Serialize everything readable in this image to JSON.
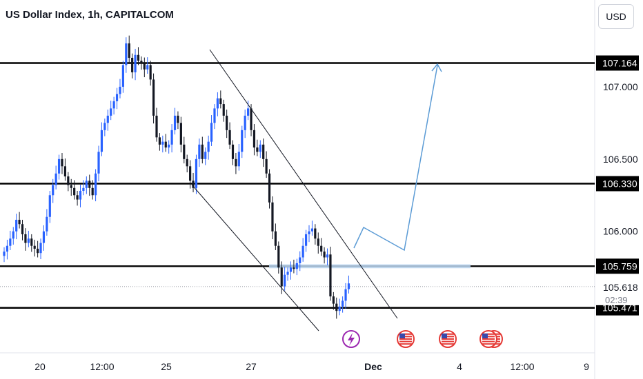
{
  "chart_title": "US Dollar Index, 1h, CAPITALCOM",
  "currency_button": "USD",
  "colors": {
    "up": "#2962ff",
    "down": "#131722",
    "level": "#000000",
    "drawing": "#5b9bd5",
    "zone": "#bbd6f0",
    "channel": "#131722",
    "axis_text": "#131722",
    "event_purple": "#9c27b0",
    "event_red": "#e53935"
  },
  "chart_data": {
    "type": "candlestick",
    "title": "US Dollar Index, 1h, CAPITALCOM",
    "ylim": [
      105.16,
      107.6
    ],
    "y_ticks": [
      107.0,
      106.5,
      106.0
    ],
    "y_tick_labels": [
      "107.000",
      "106.500",
      "106.000"
    ],
    "x_tick_labels": [
      "20",
      "12:00",
      "25",
      "27",
      "Dec",
      "4",
      "12:00",
      "9"
    ],
    "current_price": 105.618,
    "countdown": "02:39",
    "horizontal_levels": [
      {
        "value": 107.164,
        "label": "107.164"
      },
      {
        "value": 106.33,
        "label": "106.330"
      },
      {
        "value": 105.759,
        "label": "105.759"
      },
      {
        "value": 105.471,
        "label": "105.471"
      }
    ],
    "closes": [
      105.86,
      105.9,
      105.95,
      106.0,
      106.08,
      106.05,
      105.98,
      105.92,
      105.95,
      105.9,
      105.88,
      105.85,
      105.92,
      106.0,
      106.1,
      106.25,
      106.32,
      106.4,
      106.5,
      106.45,
      106.38,
      106.32,
      106.3,
      106.25,
      106.22,
      106.28,
      106.3,
      106.35,
      106.3,
      106.25,
      106.4,
      106.55,
      106.7,
      106.75,
      106.8,
      106.85,
      106.9,
      106.95,
      107.0,
      107.15,
      107.3,
      107.2,
      107.1,
      107.22,
      107.18,
      107.16,
      107.12,
      107.15,
      107.05,
      106.8,
      106.65,
      106.6,
      106.62,
      106.58,
      106.6,
      106.7,
      106.8,
      106.75,
      106.6,
      106.5,
      106.45,
      106.35,
      106.3,
      106.5,
      106.6,
      106.5,
      106.55,
      106.62,
      106.75,
      106.85,
      106.92,
      106.88,
      106.8,
      106.7,
      106.6,
      106.5,
      106.45,
      106.55,
      106.7,
      106.8,
      106.85,
      106.7,
      106.58,
      106.55,
      106.6,
      106.5,
      106.4,
      106.2,
      106.0,
      105.9,
      105.75,
      105.62,
      105.7,
      105.72,
      105.75,
      105.74,
      105.78,
      105.82,
      105.9,
      105.98,
      106.0,
      106.02,
      105.95,
      105.9,
      105.86,
      105.82,
      105.84,
      105.55,
      105.5,
      105.45,
      105.48,
      105.52,
      105.6,
      105.64
    ],
    "annotations": [
      {
        "type": "descending_channel"
      },
      {
        "type": "projection_arrow",
        "target": 107.03
      },
      {
        "type": "demand_zone",
        "from": 105.745,
        "to": 105.772
      },
      {
        "type": "event_icons",
        "count": 4
      }
    ]
  }
}
